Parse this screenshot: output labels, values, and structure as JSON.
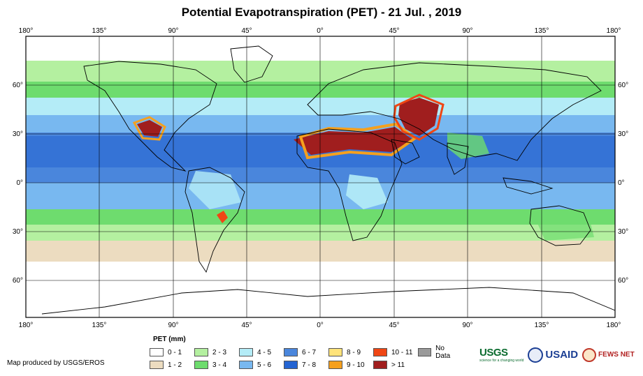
{
  "title": "Potential Evapotranspiration (PET) - 21 Jul. , 2019",
  "axes": {
    "lon_labels": [
      "180°",
      "135°",
      "90°",
      "45°",
      "0°",
      "45°",
      "90°",
      "135°",
      "180°"
    ],
    "lat_labels": [
      "60°",
      "30°",
      "0°",
      "30°",
      "60°"
    ]
  },
  "legend": {
    "title": "PET (mm)",
    "items": [
      {
        "label": "0 - 1",
        "color": "#ffffff"
      },
      {
        "label": "1 - 2",
        "color": "#ecdcc0"
      },
      {
        "label": "2 - 3",
        "color": "#b4f0a0"
      },
      {
        "label": "3 - 4",
        "color": "#6edc6e"
      },
      {
        "label": "4 - 5",
        "color": "#b4ecf7"
      },
      {
        "label": "5 - 6",
        "color": "#78b8f0"
      },
      {
        "label": "6 - 7",
        "color": "#4a86dc"
      },
      {
        "label": "7 - 8",
        "color": "#2464d2"
      },
      {
        "label": "8 - 9",
        "color": "#ffe37a"
      },
      {
        "label": "9 - 10",
        "color": "#f5a01e"
      },
      {
        "label": "10 - 11",
        "color": "#f04614"
      },
      {
        "label": "> 11",
        "color": "#a01e1e"
      },
      {
        "label": "No Data",
        "color": "#9a9a9a"
      }
    ]
  },
  "credit": "Map produced by USGS/EROS",
  "logos": {
    "usgs": "USGS",
    "usgs_tagline": "science for a changing world",
    "usaid": "USAID",
    "fews": "FEWS NET"
  }
}
